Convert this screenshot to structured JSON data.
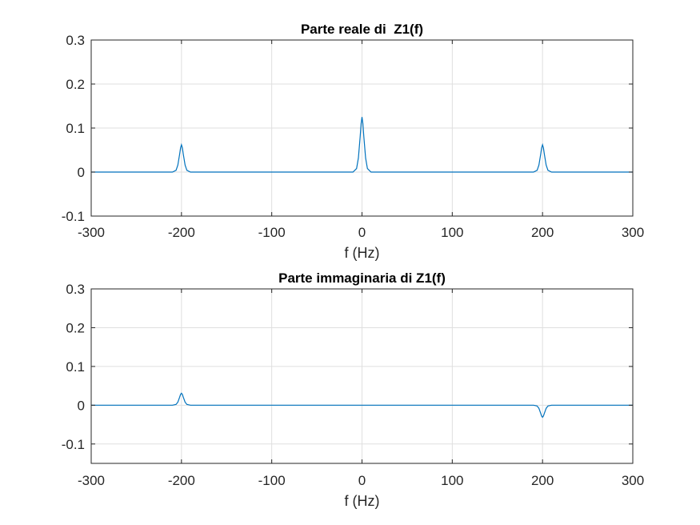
{
  "chart_data": [
    {
      "type": "line",
      "title": "Parte reale di  Z1(f)",
      "xlabel": "f (Hz)",
      "ylabel": "",
      "xlim": [
        -300,
        300
      ],
      "ylim": [
        -0.1,
        0.3
      ],
      "xticks": [
        "-300",
        "-200",
        "-100",
        "0",
        "100",
        "200",
        "300"
      ],
      "yticks": [
        "-0.1",
        "0",
        "0.1",
        "0.2",
        "0.3"
      ],
      "grid": true,
      "color": "#0072bd",
      "series": [
        {
          "x": [
            -300,
            -210,
            -206,
            -204,
            -202,
            -201,
            -200,
            -199,
            -198,
            -196,
            -194,
            -190,
            -10,
            -6,
            -4,
            -2,
            -1,
            0,
            1,
            2,
            4,
            6,
            10,
            190,
            194,
            196,
            198,
            199,
            200,
            201,
            202,
            204,
            206,
            210,
            300
          ],
          "y": [
            0,
            0,
            0.004,
            0.016,
            0.041,
            0.055,
            0.062,
            0.055,
            0.041,
            0.016,
            0.004,
            0,
            0,
            0.008,
            0.032,
            0.081,
            0.11,
            0.125,
            0.11,
            0.081,
            0.032,
            0.008,
            0,
            0,
            0.004,
            0.016,
            0.041,
            0.055,
            0.062,
            0.055,
            0.041,
            0.016,
            0.004,
            0,
            0
          ]
        }
      ]
    },
    {
      "type": "line",
      "title": "Parte immaginaria di Z1(f)",
      "xlabel": "f (Hz)",
      "ylabel": "",
      "xlim": [
        -300,
        300
      ],
      "ylim": [
        -0.15,
        0.3
      ],
      "xticks": [
        "-300",
        "-200",
        "-100",
        "0",
        "100",
        "200",
        "300"
      ],
      "yticks": [
        "-0.1",
        "0",
        "0.1",
        "0.2",
        "0.3"
      ],
      "grid": true,
      "color": "#0072bd",
      "series": [
        {
          "x": [
            -300,
            -210,
            -206,
            -204,
            -202,
            -201,
            -200,
            -199,
            -198,
            -196,
            -194,
            -190,
            190,
            194,
            196,
            198,
            199,
            200,
            201,
            202,
            204,
            206,
            210,
            300
          ],
          "y": [
            0,
            0,
            0.002,
            0.008,
            0.021,
            0.028,
            0.031,
            0.028,
            0.021,
            0.008,
            0.002,
            0,
            0,
            -0.002,
            -0.008,
            -0.021,
            -0.028,
            -0.031,
            -0.028,
            -0.021,
            -0.008,
            -0.002,
            0,
            0
          ]
        }
      ]
    }
  ]
}
